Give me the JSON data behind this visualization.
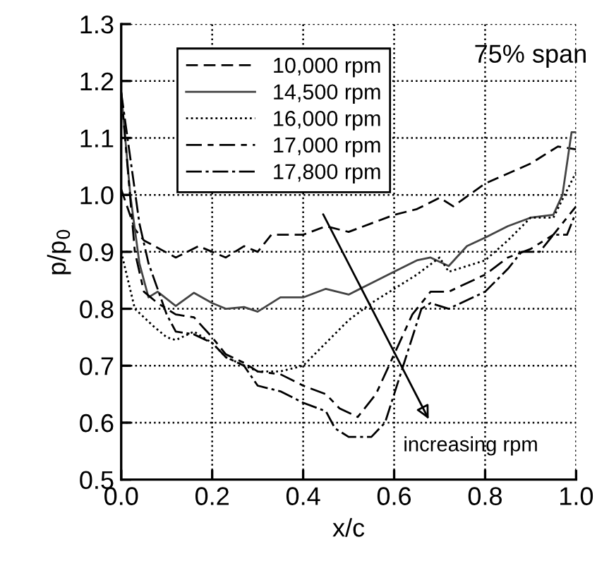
{
  "chart_data": {
    "type": "line",
    "xlabel": "x/c",
    "ylabel": "p/p$_{0}$",
    "xlim": [
      0.0,
      1.0
    ],
    "xticks": [
      {
        "value": 0,
        "label": "0.0"
      },
      0.2,
      0.4,
      0.6,
      0.8,
      {
        "value": 1,
        "label": "1.0"
      }
    ],
    "ylim": [
      0.5,
      1.3
    ],
    "yticks": [
      0.5,
      0.6,
      0.7,
      0.8,
      0.9,
      {
        "value": 1,
        "label": "1.0"
      },
      1.1,
      1.2,
      1.3
    ],
    "grid": true,
    "legend": "top left",
    "annotations": [
      "75% span",
      "increasing rpm"
    ],
    "series": [
      {
        "name": "10,000 rpm",
        "color": "#000000",
        "line_style": "dashed",
        "x": [
          0,
          0.03,
          0.05,
          0.12,
          0.17,
          0.2,
          0.23,
          0.27,
          0.3,
          0.33,
          0.4,
          0.45,
          0.5,
          0.6,
          0.65,
          0.7,
          0.73,
          0.8,
          0.9,
          0.96,
          1.0
        ],
        "values": [
          1.01,
          0.94,
          0.92,
          0.89,
          0.91,
          0.9,
          0.89,
          0.91,
          0.9,
          0.93,
          0.93,
          0.945,
          0.935,
          0.965,
          0.975,
          0.995,
          0.98,
          1.02,
          1.055,
          1.085,
          1.08
        ]
      },
      {
        "name": "14,500 rpm",
        "color": "#444444",
        "line_style": "solid",
        "x": [
          0,
          0.02,
          0.04,
          0.06,
          0.08,
          0.12,
          0.16,
          0.2,
          0.23,
          0.27,
          0.3,
          0.35,
          0.4,
          0.45,
          0.5,
          0.55,
          0.6,
          0.65,
          0.68,
          0.72,
          0.76,
          0.8,
          0.85,
          0.9,
          0.95,
          0.97,
          0.99,
          1.0
        ],
        "values": [
          1.18,
          1.0,
          0.88,
          0.82,
          0.83,
          0.805,
          0.828,
          0.81,
          0.8,
          0.803,
          0.795,
          0.82,
          0.82,
          0.835,
          0.825,
          0.845,
          0.865,
          0.885,
          0.89,
          0.875,
          0.91,
          0.925,
          0.945,
          0.96,
          0.965,
          1.0,
          1.11,
          1.11
        ]
      },
      {
        "name": "16,000 rpm",
        "color": "#000000",
        "line_style": "dotted",
        "x": [
          0,
          0.03,
          0.07,
          0.1,
          0.12,
          0.16,
          0.2,
          0.23,
          0.3,
          0.35,
          0.4,
          0.45,
          0.5,
          0.55,
          0.6,
          0.65,
          0.7,
          0.72,
          0.8,
          0.85,
          0.9,
          0.95,
          1.0
        ],
        "values": [
          0.9,
          0.8,
          0.77,
          0.75,
          0.745,
          0.76,
          0.74,
          0.715,
          0.69,
          0.69,
          0.7,
          0.74,
          0.78,
          0.81,
          0.835,
          0.86,
          0.89,
          0.865,
          0.885,
          0.92,
          0.96,
          0.96,
          1.04
        ]
      },
      {
        "name": "17,000 rpm",
        "color": "#000000",
        "line_style": "longdash",
        "x": [
          0,
          0.03,
          0.05,
          0.08,
          0.12,
          0.16,
          0.2,
          0.23,
          0.27,
          0.3,
          0.35,
          0.4,
          0.45,
          0.48,
          0.52,
          0.56,
          0.6,
          0.64,
          0.68,
          0.72,
          0.8,
          0.85,
          0.9,
          0.95,
          1.0
        ],
        "values": [
          1.18,
          0.9,
          0.83,
          0.81,
          0.79,
          0.785,
          0.75,
          0.72,
          0.705,
          0.69,
          0.685,
          0.665,
          0.65,
          0.625,
          0.61,
          0.65,
          0.72,
          0.79,
          0.83,
          0.83,
          0.86,
          0.89,
          0.905,
          0.93,
          0.98
        ]
      },
      {
        "name": "17,800 rpm",
        "color": "#000000",
        "line_style": "dashdot",
        "x": [
          0,
          0.04,
          0.06,
          0.1,
          0.12,
          0.16,
          0.2,
          0.23,
          0.27,
          0.3,
          0.35,
          0.4,
          0.45,
          0.47,
          0.5,
          0.55,
          0.58,
          0.62,
          0.66,
          0.68,
          0.72,
          0.8,
          0.85,
          0.88,
          0.92,
          0.95,
          0.98,
          1.0
        ],
        "values": [
          1.18,
          0.95,
          0.88,
          0.79,
          0.76,
          0.755,
          0.74,
          0.715,
          0.7,
          0.665,
          0.655,
          0.635,
          0.62,
          0.59,
          0.575,
          0.575,
          0.6,
          0.7,
          0.8,
          0.81,
          0.8,
          0.83,
          0.87,
          0.9,
          0.9,
          0.93,
          0.93,
          0.97
        ]
      }
    ]
  }
}
